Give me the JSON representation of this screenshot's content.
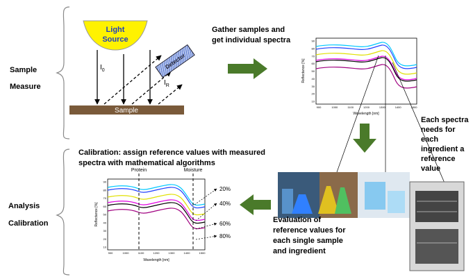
{
  "left_labels": {
    "top": [
      "Sample",
      "Measure"
    ],
    "bottom": [
      "Analysis",
      "Calibration"
    ]
  },
  "measure": {
    "light_source": [
      "Light",
      "Source"
    ],
    "i0": {
      "base": "I",
      "sub": "0"
    },
    "ir": {
      "base": "I",
      "sub": "R"
    },
    "detector": "Detector",
    "sample": "Sample"
  },
  "gather_text": [
    "Gather samples and",
    "get individual spectra"
  ],
  "each_spectra_text": [
    "Each spectra",
    "needs for",
    "each",
    "ingredient a",
    "reference",
    "value"
  ],
  "calibration_text": [
    "Calibration: assign reference values with measured",
    "spectra with mathematical algorithms"
  ],
  "evaluation_text": [
    "Evaluation of",
    "reference values for",
    "each single sample",
    "and ingredient"
  ],
  "top_chart": {
    "y_label": "Reflectance [%]",
    "x_label": "Wavelength [nm]",
    "yticks": [
      90,
      80,
      70,
      60,
      50,
      40,
      30,
      20,
      10
    ],
    "xticks": [
      900,
      1000,
      1100,
      1200,
      1300,
      1400,
      1500
    ]
  },
  "bottom_chart": {
    "y_label": "Reflectance [%]",
    "x_label": "Wavelength [nm]",
    "yticks": [
      90,
      80,
      70,
      60,
      50,
      40,
      30,
      20,
      10
    ],
    "xticks": [
      900,
      1000,
      1100,
      1200,
      1300,
      1400,
      1500
    ],
    "protein": "Protein",
    "moisture": "Moisture",
    "levels": [
      "20%",
      "40%",
      "60%",
      "80%"
    ]
  }
}
